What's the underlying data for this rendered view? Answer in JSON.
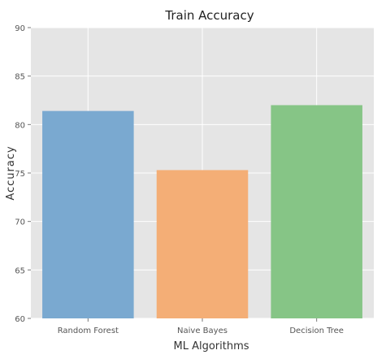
{
  "chart_data": {
    "type": "bar",
    "title": "Train Accuracy",
    "xlabel": "ML Algorithms",
    "ylabel": "Accuracy",
    "categories": [
      "Random Forest",
      "Naive Bayes",
      "Decision Tree"
    ],
    "values": [
      81.4,
      75.3,
      82.0
    ],
    "ylim": [
      60,
      90
    ],
    "yticks": [
      60,
      65,
      70,
      75,
      80,
      85,
      90
    ],
    "grid": true,
    "colors": {
      "plot_background": "#e5e5e5",
      "grid": "#ffffff",
      "bars": [
        "#7aa9d0",
        "#f4ae76",
        "#86c586"
      ]
    }
  }
}
